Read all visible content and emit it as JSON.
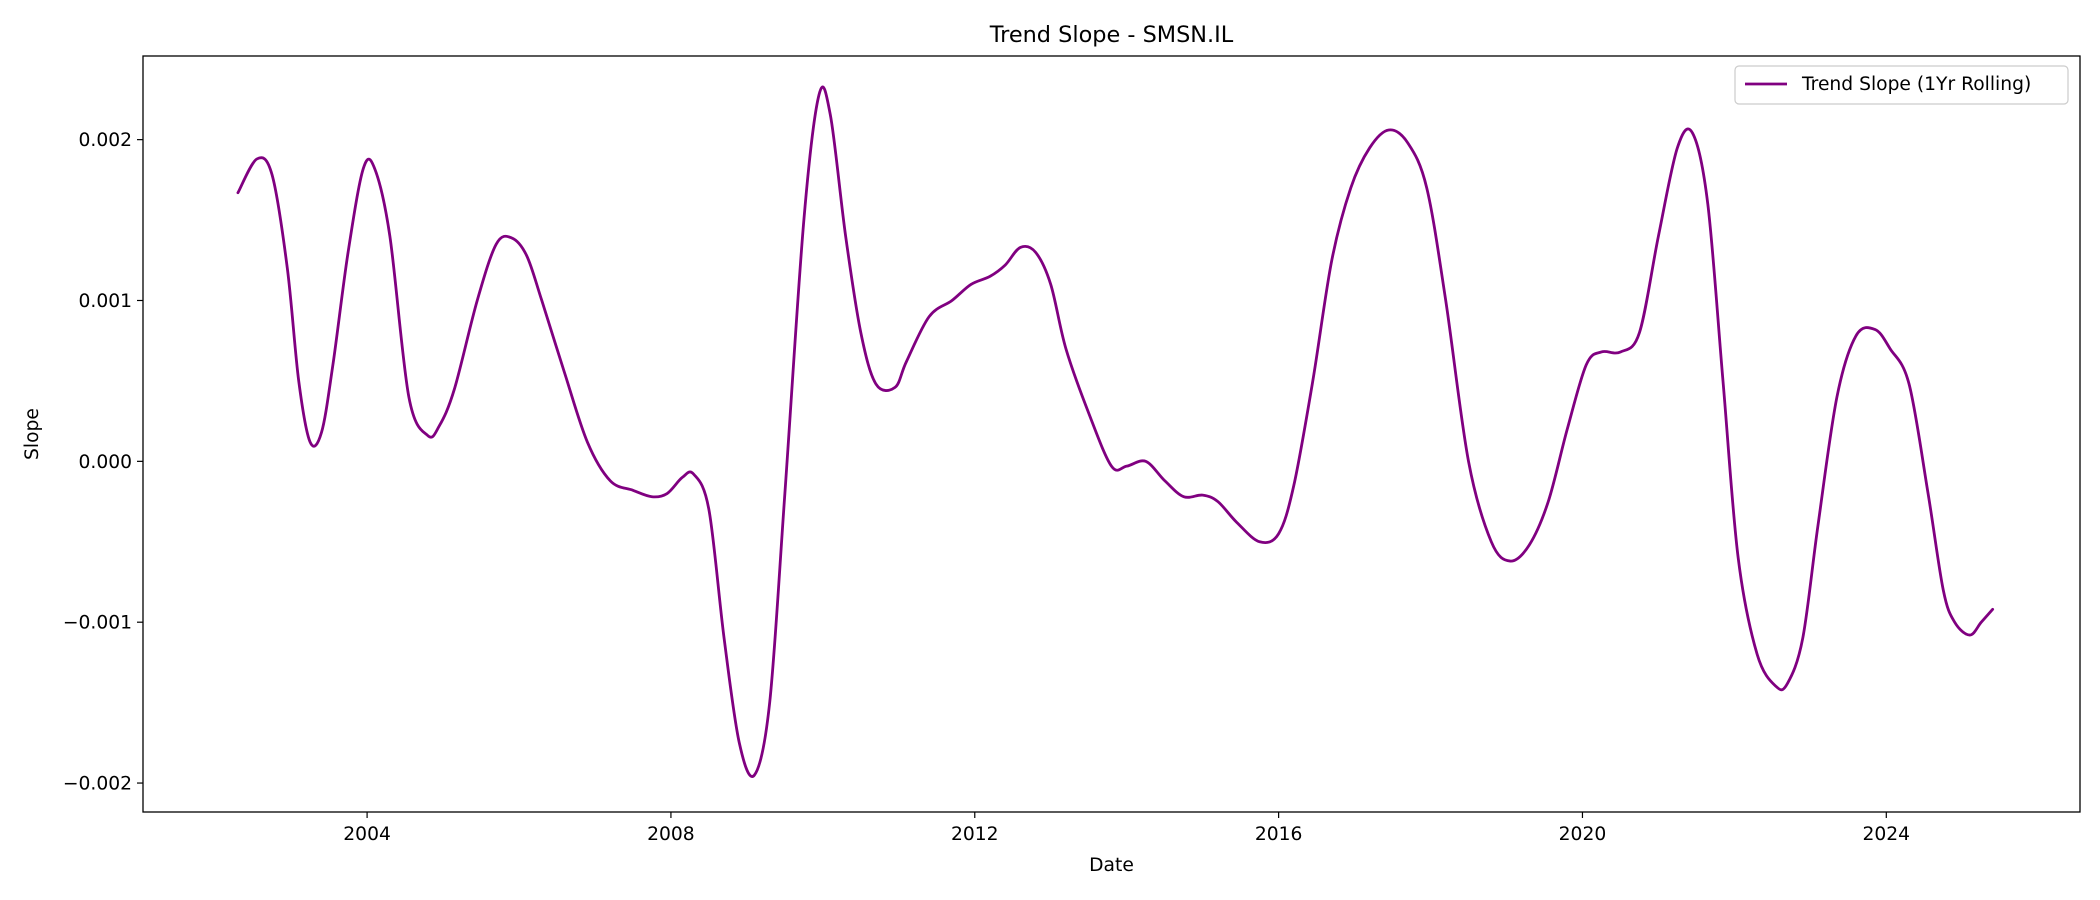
{
  "chart_data": {
    "type": "line",
    "title": "Trend Slope - SMSN.IL",
    "xlabel": "Date",
    "ylabel": "Slope",
    "xlim": [
      2001.05,
      2026.55
    ],
    "ylim": [
      -0.00218,
      0.00252
    ],
    "x_ticks": [
      2004,
      2008,
      2012,
      2016,
      2020,
      2024
    ],
    "x_tick_labels": [
      "2004",
      "2008",
      "2012",
      "2016",
      "2020",
      "2024"
    ],
    "y_ticks": [
      -0.002,
      -0.001,
      0.0,
      0.001,
      0.002
    ],
    "y_tick_labels": [
      "−0.002",
      "−0.001",
      "0.000",
      "0.001",
      "0.002"
    ],
    "grid": false,
    "legend_position": "top-right",
    "colors": {
      "series": "#800080"
    },
    "series": [
      {
        "name": "Trend Slope (1Yr Rolling)",
        "x": [
          2002.3,
          2002.55,
          2002.75,
          2002.95,
          2003.1,
          2003.25,
          2003.4,
          2003.55,
          2003.75,
          2003.95,
          2004.1,
          2004.3,
          2004.55,
          2004.8,
          2004.95,
          2005.15,
          2005.45,
          2005.7,
          2005.9,
          2006.1,
          2006.3,
          2006.6,
          2006.9,
          2007.2,
          2007.5,
          2007.75,
          2007.95,
          2008.15,
          2008.3,
          2008.5,
          2008.7,
          2008.9,
          2009.1,
          2009.3,
          2009.5,
          2009.75,
          2009.95,
          2010.1,
          2010.3,
          2010.5,
          2010.7,
          2010.95,
          2011.1,
          2011.4,
          2011.7,
          2011.95,
          2012.2,
          2012.4,
          2012.6,
          2012.8,
          2013.0,
          2013.2,
          2013.5,
          2013.8,
          2014.0,
          2014.25,
          2014.5,
          2014.75,
          2015.0,
          2015.2,
          2015.45,
          2015.75,
          2016.0,
          2016.2,
          2016.45,
          2016.7,
          2016.95,
          2017.2,
          2017.45,
          2017.7,
          2017.95,
          2018.2,
          2018.5,
          2018.8,
          2019.05,
          2019.3,
          2019.55,
          2019.8,
          2020.05,
          2020.25,
          2020.5,
          2020.75,
          2021.0,
          2021.25,
          2021.45,
          2021.65,
          2021.85,
          2022.05,
          2022.3,
          2022.55,
          2022.7,
          2022.9,
          2023.1,
          2023.35,
          2023.6,
          2023.85,
          2024.05,
          2024.3,
          2024.55,
          2024.75,
          2024.9,
          2025.1,
          2025.25,
          2025.4
        ],
        "y": [
          0.00167,
          0.00188,
          0.00178,
          0.0012,
          0.0005,
          0.00012,
          0.00018,
          0.0006,
          0.0013,
          0.00182,
          0.00182,
          0.0014,
          0.0004,
          0.00016,
          0.00022,
          0.00045,
          0.001,
          0.00135,
          0.00139,
          0.00128,
          0.001,
          0.00055,
          0.00012,
          -0.00012,
          -0.00018,
          -0.00022,
          -0.0002,
          -0.0001,
          -8e-05,
          -0.0003,
          -0.0011,
          -0.00175,
          -0.00195,
          -0.0015,
          -0.0002,
          0.0015,
          0.00228,
          0.00215,
          0.0014,
          0.0008,
          0.00048,
          0.00046,
          0.00062,
          0.0009,
          0.001,
          0.0011,
          0.00115,
          0.00122,
          0.00133,
          0.0013,
          0.0011,
          0.0007,
          0.0003,
          -3e-05,
          -3e-05,
          0.0,
          -0.00012,
          -0.00022,
          -0.00021,
          -0.00025,
          -0.00038,
          -0.0005,
          -0.00045,
          -0.00015,
          0.0005,
          0.00125,
          0.0017,
          0.00195,
          0.00206,
          0.00198,
          0.0017,
          0.001,
          0.0,
          -0.0005,
          -0.00062,
          -0.00052,
          -0.00025,
          0.0002,
          0.0006,
          0.00068,
          0.00068,
          0.0008,
          0.0014,
          0.00195,
          0.00204,
          0.0016,
          0.0005,
          -0.0006,
          -0.0012,
          -0.0014,
          -0.00138,
          -0.0011,
          -0.0004,
          0.0004,
          0.00078,
          0.00082,
          0.0007,
          0.00048,
          -0.0002,
          -0.0008,
          -0.001,
          -0.00108,
          -0.001,
          -0.00092
        ]
      }
    ]
  }
}
